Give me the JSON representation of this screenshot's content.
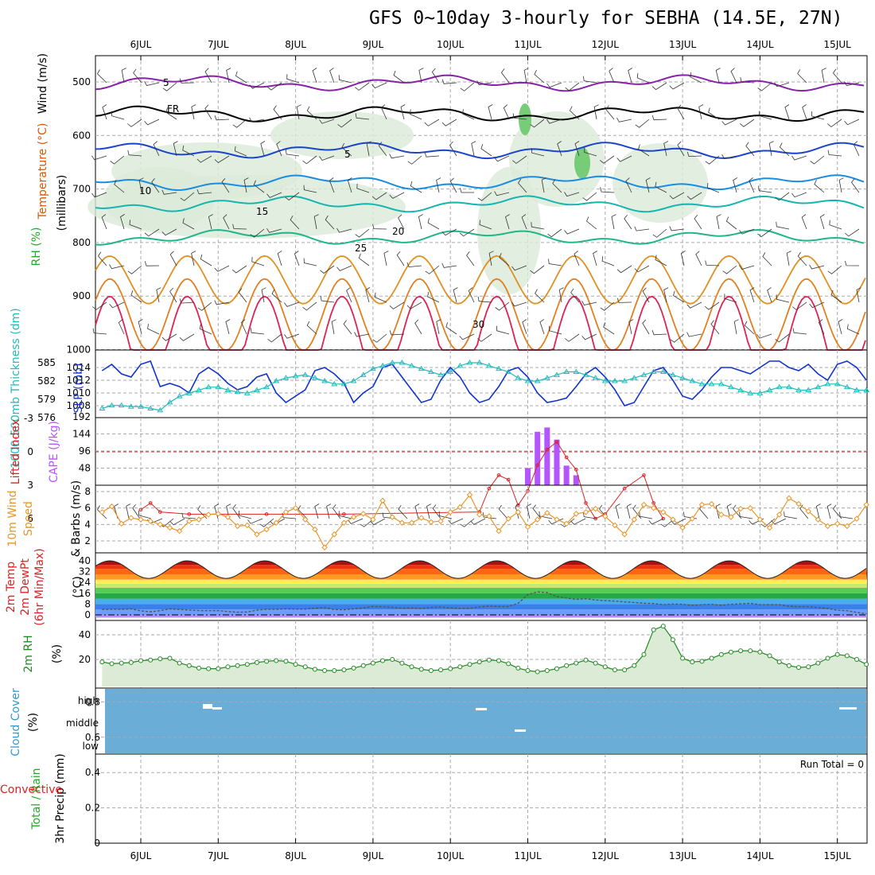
{
  "title": "GFS 0~10day 3-hourly for SEBHA (14.5E, 27N)",
  "dates": [
    "6JUL",
    "7JUL",
    "8JUL",
    "9JUL",
    "10JUL",
    "11JUL",
    "12JUL",
    "13JUL",
    "14JUL",
    "15JUL"
  ],
  "chart_data": [
    {
      "type": "contour",
      "panel": "upper-air",
      "ylabel": "(millibars)",
      "side_labels": [
        "Wind (m/s)",
        "Temperature (°C)",
        "RH (%)"
      ],
      "y_ticks": [
        500,
        600,
        700,
        800,
        900,
        1000
      ],
      "ylim": [
        1000,
        450
      ],
      "contour_labels": [
        "5",
        "FR",
        "5",
        "10",
        "15",
        "20",
        "25",
        "30"
      ],
      "isotherms_degC": [
        -5,
        0,
        5,
        10,
        15,
        20,
        25,
        30,
        35
      ]
    },
    {
      "type": "line",
      "panel": "thickness-slp",
      "left_axis": {
        "label": "1000-500mb Thickness (dm)",
        "ticks": [
          576,
          579,
          582,
          585
        ]
      },
      "right_axis": {
        "label": "SLP (mb)",
        "ticks": [
          1008,
          1010,
          1012,
          1014
        ]
      },
      "series": [
        {
          "name": "SLP (mb)",
          "color": "#1133cc",
          "values": [
            1013.5,
            1014.5,
            1013,
            1012.5,
            1014.5,
            1015,
            1011,
            1011.5,
            1011,
            1010,
            1013,
            1014,
            1013,
            1011.5,
            1010.5,
            1011,
            1012.5,
            1013,
            1010,
            1008.5,
            1009.5,
            1010.5,
            1013.5,
            1014,
            1013,
            1011.5,
            1008.5,
            1010,
            1011,
            1014,
            1014.5,
            1012.5,
            1010.5,
            1008.5,
            1009,
            1012,
            1014,
            1012.5,
            1010,
            1008.5,
            1009,
            1011,
            1013.5,
            1014,
            1012.5,
            1010,
            1008.5,
            1008.8,
            1009.2,
            1011,
            1013,
            1014,
            1012.5,
            1010.5,
            1008,
            1008.5,
            1011,
            1013.5,
            1014,
            1012,
            1009.5,
            1009,
            1010.5,
            1012.5,
            1014,
            1014,
            1013.5,
            1013,
            1014,
            1015,
            1015,
            1014,
            1013.5,
            1014.5,
            1013,
            1012,
            1014.5,
            1015,
            1014,
            1012,
            1011,
            1013,
            1014,
            1012.5,
            1013,
            1014
          ]
        },
        {
          "name": "Thickness (dm)",
          "color": "#22bbbb",
          "values": [
            577.5,
            578,
            578,
            577.8,
            577.8,
            577.5,
            577.2,
            578.5,
            579.5,
            580,
            580.5,
            581,
            581,
            580.5,
            580.2,
            580,
            580.5,
            581,
            582,
            582.5,
            582.8,
            583,
            582.5,
            582,
            581.5,
            581.5,
            582,
            583,
            584,
            584.5,
            585,
            585,
            584.5,
            584,
            583.5,
            583,
            583.5,
            584.5,
            585,
            585,
            584.5,
            584,
            583.5,
            582.5,
            582,
            582,
            582.5,
            583,
            583.5,
            583.5,
            583,
            582.5,
            582,
            582,
            582,
            582.5,
            583,
            583.5,
            583.5,
            583,
            582.5,
            582,
            581.5,
            581.5,
            581.5,
            581,
            580.5,
            580,
            580,
            580.5,
            581,
            581,
            580.5,
            580.5,
            581,
            581.5,
            581.5,
            581,
            580.5,
            580.5,
            581,
            581.5,
            581.5,
            581.5,
            581,
            580.5
          ]
        }
      ]
    },
    {
      "type": "bar",
      "panel": "cape-li",
      "left_axis": {
        "label": "Lifted Index",
        "ticks": [
          -3,
          0,
          3,
          6
        ]
      },
      "right_axis": {
        "label": "CAPE (J/kg)",
        "ticks": [
          48,
          96,
          144,
          192
        ]
      },
      "series": [
        {
          "name": "CAPE (J/kg)",
          "color": "#b455ff",
          "x_days": [
            5.0,
            5.125,
            5.25,
            5.375,
            5.5,
            5.625
          ],
          "values": [
            48,
            150,
            162,
            128,
            55,
            28
          ]
        },
        {
          "name": "Lifted Index",
          "color": "#dd2222",
          "points": [
            [
              0.0,
              5.2
            ],
            [
              0.125,
              4.6
            ],
            [
              0.25,
              5.4
            ],
            [
              0.625,
              5.6
            ],
            [
              1.625,
              5.6
            ],
            [
              2.625,
              5.6
            ],
            [
              4.375,
              5.4
            ],
            [
              4.5,
              3.3
            ],
            [
              4.625,
              2.1
            ],
            [
              4.75,
              2.5
            ],
            [
              4.875,
              4.8
            ],
            [
              5.0,
              3.5
            ],
            [
              5.125,
              1.2
            ],
            [
              5.25,
              -0.2
            ],
            [
              5.375,
              -0.9
            ],
            [
              5.5,
              0.5
            ],
            [
              5.625,
              1.6
            ],
            [
              5.75,
              4.6
            ],
            [
              5.875,
              6
            ],
            [
              6.0,
              5.6
            ],
            [
              6.25,
              3.3
            ],
            [
              6.5,
              2.1
            ],
            [
              6.625,
              4.6
            ],
            [
              6.75,
              6
            ]
          ]
        }
      ]
    },
    {
      "type": "line",
      "panel": "10m-wind",
      "ylabel": "10m Wind Speed & Barbs (m/s)",
      "y_ticks": [
        2,
        4,
        6,
        8
      ],
      "series": [
        {
          "name": "10m Wind Speed",
          "color": "#e8962a",
          "values": [
            5.5,
            6.2,
            4.1,
            4.8,
            4.6,
            4.4,
            4,
            3.6,
            3.2,
            4.4,
            4.6,
            5.2,
            5.3,
            4.9,
            3.8,
            3.9,
            2.8,
            3.4,
            4.2,
            5.5,
            6,
            4.6,
            3.4,
            1.2,
            2.8,
            4.2,
            4.9,
            5.3,
            4.6,
            6.9,
            4.9,
            4.2,
            4.2,
            4.8,
            4.3,
            4.4,
            5.5,
            6.1,
            7.6,
            5.2,
            5,
            3.2,
            4.7,
            5.5,
            3.7,
            4.6,
            5.4,
            4.6,
            4.1,
            5.3,
            5.5,
            5.9,
            5,
            3.9,
            2.8,
            4.6,
            6.4,
            6,
            5.5,
            4.6,
            3.6,
            4.7,
            6.4,
            6.5,
            5.2,
            4.9,
            5.9,
            6,
            4.6,
            3.6,
            5.2,
            7.2,
            6.5,
            5.6,
            4.6,
            3.8,
            4.1,
            3.8,
            4.7,
            6.4,
            7.9,
            6.5,
            5.1,
            4.4,
            4.7,
            5.3,
            2.3
          ]
        }
      ]
    },
    {
      "type": "area",
      "panel": "2m-temperature",
      "ylabel": "2m Temp, 2m DewPt (6hr Min/Max) (°C)",
      "y_ticks": [
        0,
        8,
        16,
        24,
        32,
        40
      ],
      "series": [
        {
          "name": "2m Temp",
          "diurnal_min": 27,
          "diurnal_max": 40
        },
        {
          "name": "2m DewPt",
          "color": "#555555",
          "values": [
            4,
            4.2,
            4.2,
            4.5,
            3,
            2.3,
            3.2,
            4.5,
            4,
            3.6,
            3.2,
            3.1,
            3.2,
            2.5,
            2,
            2.1,
            3.5,
            4.2,
            4.2,
            4.5,
            4.3,
            4.3,
            5,
            5.4,
            4,
            3.8,
            4.5,
            5.2,
            6.2,
            6,
            5.5,
            5,
            5.2,
            4.8,
            5.5,
            5.8,
            5.2,
            4.8,
            5,
            5.8,
            6.5,
            6.2,
            6.2,
            8.5,
            15,
            17,
            16.5,
            13.5,
            12.5,
            11.5,
            12,
            11,
            10.5,
            10.2,
            9.6,
            9.2,
            8.6,
            8.4,
            7.6,
            8,
            7.8,
            7.2,
            7.6,
            7.8,
            7.2,
            7.8,
            8.2,
            8.5,
            7.6,
            7.6,
            7.6,
            6.4,
            6,
            6,
            5.4,
            4.8,
            3.4,
            3.1,
            1.8,
            0.8,
            0.6,
            2.2,
            3.2,
            3.4,
            3.2,
            3.2,
            3
          ]
        }
      ]
    },
    {
      "type": "line",
      "panel": "2m-rh",
      "ylabel": "2m RH (%)",
      "y_ticks": [
        20,
        40
      ],
      "series": [
        {
          "name": "2m RH",
          "color": "#228822",
          "values": [
            18,
            16.5,
            17,
            17.5,
            19,
            19.5,
            20.5,
            21,
            17,
            15,
            13,
            12.5,
            12.5,
            14,
            15,
            16,
            17.5,
            18.5,
            19,
            18.5,
            16,
            14,
            12,
            11,
            11,
            11.5,
            13,
            15,
            17,
            19,
            20,
            17,
            14,
            12,
            11,
            11.5,
            12.5,
            14,
            16,
            18,
            19.5,
            19,
            16.5,
            13,
            11,
            10,
            11,
            12.5,
            15,
            17,
            19.5,
            17,
            14,
            11.5,
            11.5,
            15,
            24,
            44,
            47,
            36,
            21,
            18,
            18.5,
            21,
            24,
            26,
            27,
            27,
            26,
            23,
            18,
            15,
            13.5,
            14,
            17,
            21,
            24,
            23,
            20,
            16,
            12,
            11.5,
            12.5,
            14,
            16,
            19,
            27,
            23,
            13,
            10,
            12,
            15,
            19,
            20,
            18
          ]
        }
      ]
    },
    {
      "type": "heatmap",
      "panel": "cloud-cover",
      "ylabel": "Cloud Cover (%)",
      "levels": [
        "high",
        "middle",
        "low"
      ]
    },
    {
      "type": "bar",
      "panel": "precip",
      "ylabel": "3hr Precip (mm)",
      "legend": [
        "Total / Rain",
        "Convective"
      ],
      "y_ticks": [
        "0",
        "0.2",
        "0.4",
        "0.6",
        "0.8"
      ],
      "ylim": [
        0,
        1
      ],
      "annotation": "Run Total = 0",
      "values": []
    }
  ]
}
